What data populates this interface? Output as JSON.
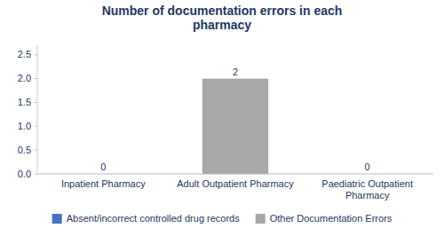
{
  "chart_data": {
    "type": "bar",
    "title": "Number of documentation errors in each\npharmacy",
    "categories": [
      "Inpatient Pharmacy",
      "Adult Outpatient Pharmacy",
      "Paediatric Outpatient\nPharmacy"
    ],
    "series": [
      {
        "name": "Absent/incorrect controlled drug records",
        "color": "#4472C4",
        "values": [
          null,
          null,
          null
        ]
      },
      {
        "name": "Other Documentation Errors",
        "color": "#A8A8A8",
        "values": [
          0,
          2,
          0
        ]
      }
    ],
    "ylim": [
      0,
      2.7
    ],
    "yticks": [
      {
        "value": 0,
        "label": "0.0"
      },
      0.5,
      {
        "value": 1,
        "label": "1.0"
      },
      1.5,
      {
        "value": 2,
        "label": "2.0"
      },
      2.5
    ],
    "data_labels": true,
    "grid": false,
    "legend": "bottom"
  }
}
